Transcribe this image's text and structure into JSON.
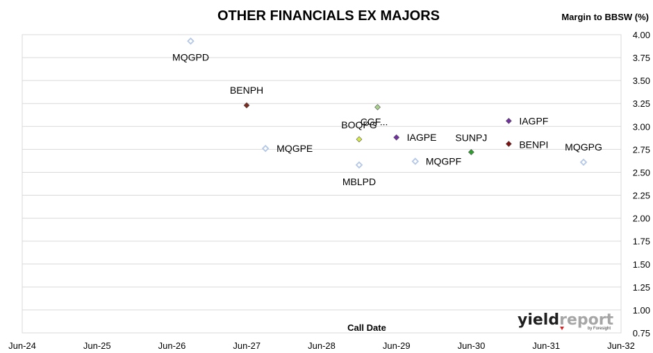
{
  "chart_data": {
    "type": "scatter",
    "title": "OTHER FINANCIALS EX MAJORS",
    "ylabel": "Margin to BBSW (%)",
    "xlabel": "Call Date",
    "ylim": [
      0.75,
      4.0
    ],
    "yticks": [
      "4.00",
      "3.75",
      "3.50",
      "3.25",
      "3.00",
      "2.75",
      "2.50",
      "2.25",
      "2.00",
      "1.75",
      "1.50",
      "1.25",
      "1.00",
      "0.75"
    ],
    "xticks": [
      "Jun-24",
      "Jun-25",
      "Jun-26",
      "Jun-27",
      "Jun-28",
      "Jun-29",
      "Jun-30",
      "Jun-31",
      "Jun-32"
    ],
    "grid": "horizontal",
    "points": [
      {
        "label": "MQGPD",
        "x": "2026-09",
        "y": 3.93,
        "color": "#b4c7e7",
        "filled": false
      },
      {
        "label": "BENPH",
        "x": "2027-06",
        "y": 3.23,
        "color": "#7a2a1f",
        "filled": true
      },
      {
        "label": "MQGPE",
        "x": "2027-09",
        "y": 2.76,
        "color": "#b4c7e7",
        "filled": false
      },
      {
        "label": "BOQPG",
        "x": "2028-12",
        "y": 2.86,
        "color": "#d5e84a",
        "filled": true
      },
      {
        "label": "MBLPD",
        "x": "2028-12",
        "y": 2.58,
        "color": "#b4c7e7",
        "filled": false
      },
      {
        "label": "CGF...",
        "x": "2029-03",
        "y": 3.21,
        "color": "#a9d18e",
        "filled": true
      },
      {
        "label": "IAGPE",
        "x": "2029-06",
        "y": 2.88,
        "color": "#7030a0",
        "filled": true
      },
      {
        "label": "MQGPF",
        "x": "2029-09",
        "y": 2.62,
        "color": "#b4c7e7",
        "filled": false
      },
      {
        "label": "SUNPJ",
        "x": "2030-06",
        "y": 2.72,
        "color": "#2ca02c",
        "filled": true
      },
      {
        "label": "IAGPF",
        "x": "2030-12",
        "y": 3.06,
        "color": "#7030a0",
        "filled": true
      },
      {
        "label": "BENPI",
        "x": "2030-12",
        "y": 2.81,
        "color": "#7f1010",
        "filled": true
      },
      {
        "label": "MQGPG",
        "x": "2031-12",
        "y": 2.61,
        "color": "#b4c7e7",
        "filled": false
      }
    ]
  },
  "logo": {
    "main": "yieldreport",
    "main_part1": "yield",
    "main_part2": "report",
    "sub": "by Foresight",
    "color_dark": "#1f1f1f",
    "color_light": "#a6a6a6",
    "color_accent": "#e02020"
  }
}
